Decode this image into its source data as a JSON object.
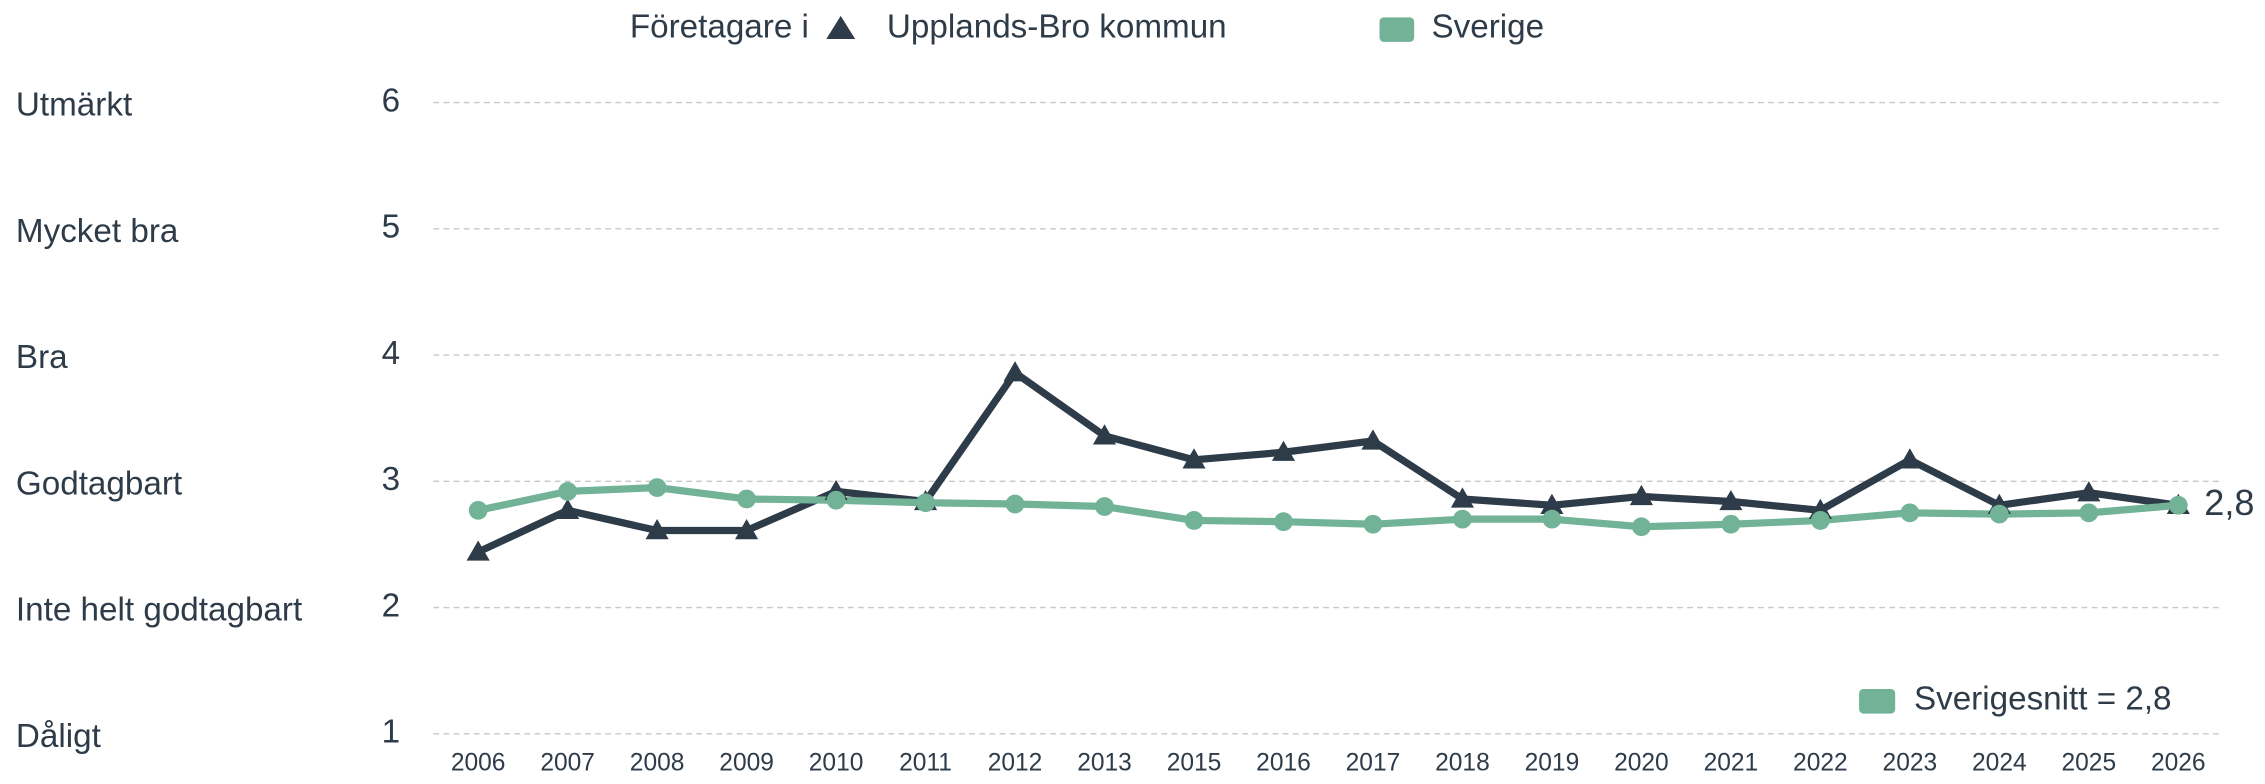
{
  "chart_data": {
    "type": "line",
    "legend_title": "Företagare i",
    "categories": [
      "2006",
      "2007",
      "2008",
      "2009",
      "2010",
      "2011",
      "2012",
      "2013",
      "2015",
      "2016",
      "2017",
      "2018",
      "2019",
      "2020",
      "2021",
      "2022",
      "2023",
      "2024",
      "2025",
      "2026"
    ],
    "series": [
      {
        "name": "Upplands-Bro kommun",
        "color": "#2e3b48",
        "marker": "triangle",
        "values": [
          2.44,
          2.77,
          2.61,
          2.61,
          2.92,
          2.84,
          3.86,
          3.36,
          3.17,
          3.23,
          3.32,
          2.86,
          2.81,
          2.88,
          2.84,
          2.77,
          3.17,
          2.81,
          2.91,
          2.81
        ],
        "value_labels": [
          null,
          null,
          null,
          null,
          null,
          null,
          null,
          null,
          null,
          null,
          null,
          null,
          null,
          null,
          null,
          null,
          null,
          null,
          null,
          "2,8"
        ]
      },
      {
        "name": "Sverige",
        "color": "#72b397",
        "marker": "circle",
        "values": [
          2.77,
          2.92,
          2.95,
          2.86,
          2.85,
          2.83,
          2.82,
          2.8,
          2.69,
          2.68,
          2.66,
          2.7,
          2.7,
          2.64,
          2.66,
          2.69,
          2.75,
          2.74,
          2.75,
          2.81
        ]
      }
    ],
    "ylim": [
      1,
      6
    ],
    "yticks": [
      1,
      2,
      3,
      4,
      5,
      6
    ],
    "ytick_level_labels": [
      "Dåligt",
      "Inte helt godtagbart",
      "Godtagbart",
      "Bra",
      "Mycket bra",
      "Utmärkt"
    ],
    "grid": true,
    "annotation": {
      "text": "Sverigesnitt = 2,8",
      "color": "#72b397"
    }
  }
}
